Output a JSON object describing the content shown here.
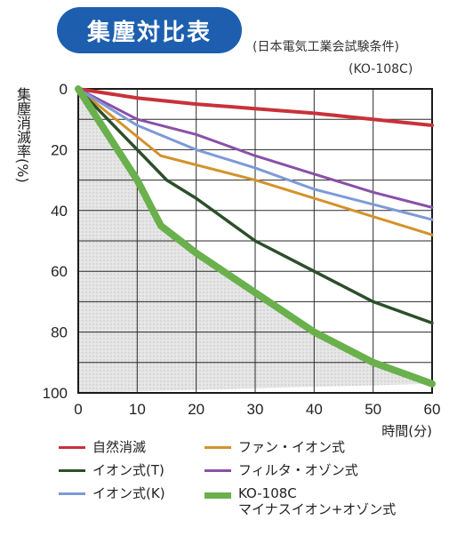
{
  "title": "集塵対比表",
  "subtitle_lines": [
    "(日本電気工業会試験条件)",
    "(KO-108C)"
  ],
  "chart_data": {
    "type": "line",
    "ylabel": "集塵消滅率(%)",
    "xlabel": "時間(分)",
    "xlim": [
      0,
      60
    ],
    "ylim": [
      0,
      100
    ],
    "y_inverted": true,
    "grid": true,
    "x_ticks": [
      0,
      10,
      20,
      30,
      40,
      50,
      60
    ],
    "y_ticks": [
      0,
      20,
      40,
      60,
      80,
      100
    ],
    "series": [
      {
        "name": "自然消滅",
        "color": "#c8323a",
        "width": 4,
        "points": [
          [
            0,
            0
          ],
          [
            10,
            3
          ],
          [
            20,
            5
          ],
          [
            30,
            6.5
          ],
          [
            40,
            8
          ],
          [
            50,
            10
          ],
          [
            60,
            12
          ]
        ]
      },
      {
        "name": "ファン・イオン式",
        "color": "#d4922a",
        "width": 3,
        "points": [
          [
            0,
            0
          ],
          [
            14,
            22
          ],
          [
            20,
            25
          ],
          [
            30,
            30
          ],
          [
            40,
            36
          ],
          [
            50,
            42
          ],
          [
            60,
            48
          ]
        ]
      },
      {
        "name": "イオン式(T)",
        "color": "#2c4f2a",
        "width": 3.5,
        "points": [
          [
            0,
            0
          ],
          [
            10,
            20
          ],
          [
            15,
            30
          ],
          [
            20,
            36
          ],
          [
            30,
            50
          ],
          [
            40,
            60
          ],
          [
            50,
            70
          ],
          [
            60,
            77
          ]
        ]
      },
      {
        "name": "フィルタ・オゾン式",
        "color": "#8a50a8",
        "width": 3,
        "points": [
          [
            0,
            0
          ],
          [
            10,
            10
          ],
          [
            20,
            15
          ],
          [
            30,
            22
          ],
          [
            40,
            28
          ],
          [
            50,
            34
          ],
          [
            60,
            39
          ]
        ]
      },
      {
        "name": "イオン式(K)",
        "color": "#7d9ad6",
        "width": 3,
        "points": [
          [
            0,
            0
          ],
          [
            10,
            12
          ],
          [
            15,
            16
          ],
          [
            20,
            20
          ],
          [
            30,
            26
          ],
          [
            40,
            33
          ],
          [
            50,
            38
          ],
          [
            60,
            43
          ]
        ]
      },
      {
        "name": "KO-108C\nマイナスイオン+オゾン式",
        "color": "#6ab04c",
        "width": 8,
        "points": [
          [
            0,
            0
          ],
          [
            5,
            15
          ],
          [
            10,
            30
          ],
          [
            14,
            45
          ],
          [
            20,
            54
          ],
          [
            30,
            67
          ],
          [
            40,
            80
          ],
          [
            50,
            90
          ],
          [
            60,
            97
          ]
        ]
      }
    ]
  },
  "legend": {
    "placement": "bottom",
    "entries": [
      {
        "label": "自然消滅",
        "color": "#c8323a"
      },
      {
        "label": "ファン・イオン式",
        "color": "#d4922a"
      },
      {
        "label": "イオン式(T)",
        "color": "#2c4f2a"
      },
      {
        "label": "フィルタ・オゾン式",
        "color": "#8a50a8"
      },
      {
        "label": "イオン式(K)",
        "color": "#7d9ad6"
      },
      {
        "label": "KO-108C\nマイナスイオン+オゾン式",
        "color": "#6ab04c"
      }
    ]
  }
}
